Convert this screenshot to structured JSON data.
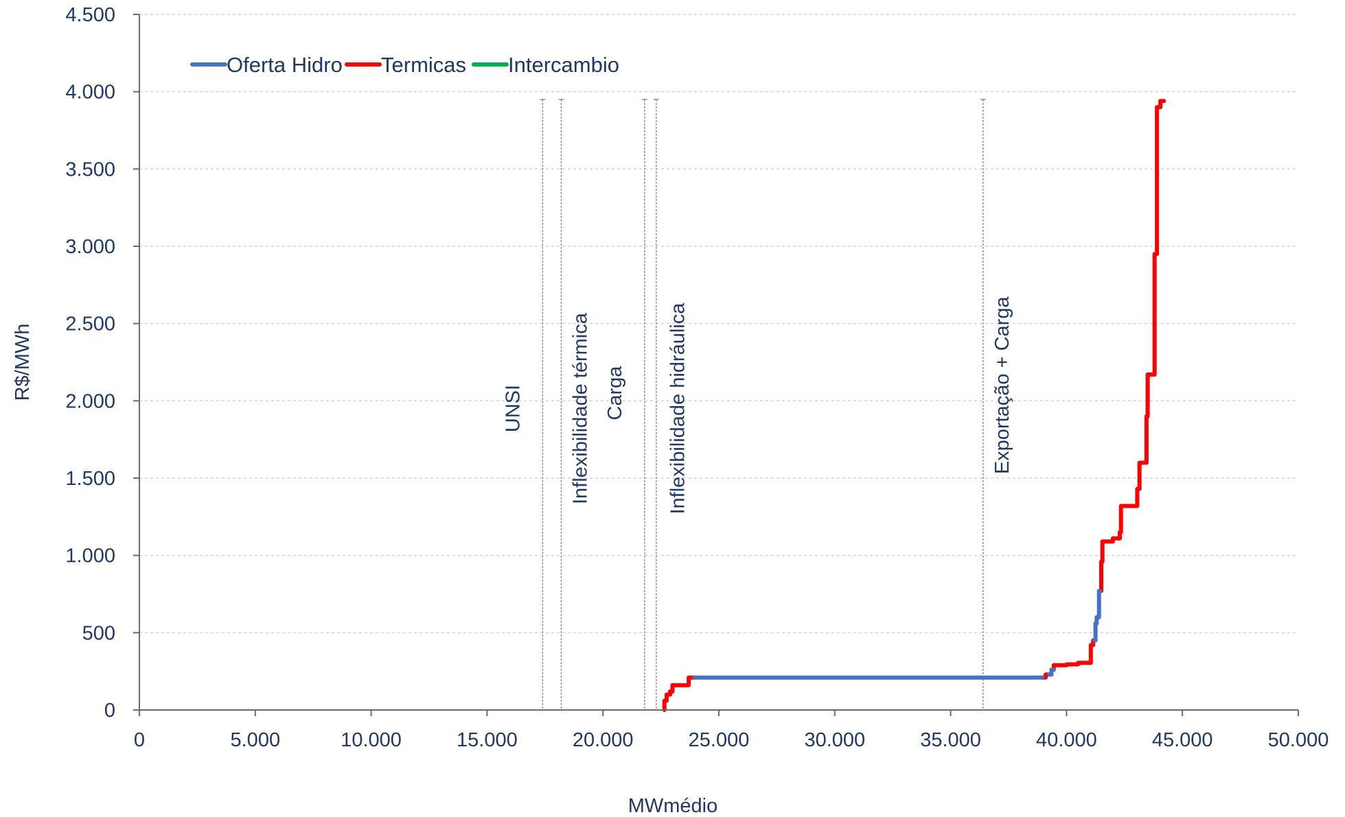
{
  "chart_data": {
    "type": "line",
    "xlabel": "MWmédio",
    "ylabel": "R$/MWh",
    "xlim": [
      0,
      50000
    ],
    "ylim": [
      0,
      4500
    ],
    "x_ticks": [
      0,
      5000,
      10000,
      15000,
      20000,
      25000,
      30000,
      35000,
      40000,
      45000,
      50000
    ],
    "x_tick_labels": [
      "0",
      "5.000",
      "10.000",
      "15.000",
      "20.000",
      "25.000",
      "30.000",
      "35.000",
      "40.000",
      "45.000",
      "50.000"
    ],
    "y_ticks": [
      0,
      500,
      1000,
      1500,
      2000,
      2500,
      3000,
      3500,
      4000,
      4500
    ],
    "y_tick_labels": [
      "0",
      "500",
      "1.000",
      "1.500",
      "2.000",
      "2.500",
      "3.000",
      "3.500",
      "4.000",
      "4.500"
    ],
    "grid": "horizontal dashed",
    "legend_position": "top-left",
    "legend": [
      {
        "label": "Oferta Hidro",
        "color": "#4472c4"
      },
      {
        "label": "Termicas",
        "color": "#ff0000"
      },
      {
        "label": "Intercambio",
        "color": "#00b050"
      }
    ],
    "series": [
      {
        "name": "Termicas",
        "color": "#ff0000",
        "segments": [
          [
            [
              22650,
              0
            ],
            [
              22650,
              60
            ],
            [
              22750,
              60
            ],
            [
              22750,
              100
            ],
            [
              22900,
              100
            ],
            [
              22900,
              120
            ],
            [
              23000,
              120
            ],
            [
              23000,
              160
            ],
            [
              23700,
              160
            ],
            [
              23700,
              210
            ],
            [
              23950,
              210
            ]
          ],
          [
            [
              38950,
              210
            ],
            [
              39100,
              210
            ],
            [
              39100,
              230
            ],
            [
              39350,
              230
            ]
          ],
          [
            [
              39350,
              260
            ],
            [
              39450,
              260
            ],
            [
              39450,
              290
            ],
            [
              40000,
              290
            ],
            [
              40000,
              295
            ],
            [
              40500,
              295
            ],
            [
              40500,
              305
            ],
            [
              41050,
              305
            ],
            [
              41050,
              420
            ],
            [
              41150,
              420
            ],
            [
              41150,
              450
            ],
            [
              41200,
              450
            ]
          ],
          [
            [
              41250,
              560
            ],
            [
              41300,
              560
            ]
          ],
          [
            [
              41450,
              770
            ],
            [
              41500,
              770
            ],
            [
              41500,
              960
            ],
            [
              41550,
              960
            ],
            [
              41550,
              1090
            ],
            [
              42000,
              1090
            ],
            [
              42000,
              1110
            ],
            [
              42300,
              1110
            ],
            [
              42300,
              1150
            ],
            [
              42350,
              1150
            ],
            [
              42350,
              1320
            ],
            [
              43050,
              1320
            ],
            [
              43050,
              1430
            ],
            [
              43150,
              1430
            ],
            [
              43150,
              1600
            ],
            [
              43450,
              1600
            ],
            [
              43450,
              1900
            ],
            [
              43500,
              1900
            ],
            [
              43500,
              2170
            ],
            [
              43800,
              2170
            ],
            [
              43800,
              2950
            ],
            [
              43900,
              2950
            ],
            [
              43900,
              3900
            ],
            [
              44050,
              3900
            ],
            [
              44050,
              3940
            ],
            [
              44200,
              3940
            ]
          ]
        ]
      },
      {
        "name": "Oferta Hidro",
        "color": "#4472c4",
        "segments": [
          [
            [
              23950,
              210
            ],
            [
              38950,
              210
            ]
          ],
          [
            [
              39250,
              230
            ],
            [
              39350,
              230
            ],
            [
              39350,
              260
            ],
            [
              39450,
              260
            ]
          ],
          [
            [
              41200,
              450
            ],
            [
              41250,
              450
            ],
            [
              41250,
              560
            ],
            [
              41300,
              560
            ],
            [
              41300,
              600
            ],
            [
              41400,
              600
            ],
            [
              41400,
              770
            ],
            [
              41450,
              770
            ]
          ]
        ]
      },
      {
        "name": "Intercambio",
        "color": "#00b050",
        "segments": []
      }
    ],
    "reference_lines": [
      {
        "x": 17400,
        "top": 3950,
        "label": ""
      },
      {
        "x": 18200,
        "top": 3950,
        "label": ""
      },
      {
        "x": 21800,
        "top": 3950,
        "label": ""
      },
      {
        "x": 22300,
        "top": 3950,
        "label": ""
      },
      {
        "x": 36400,
        "top": 3950,
        "label": ""
      }
    ],
    "annotations": [
      {
        "text": "UNSI",
        "x": 16400,
        "y": 1950
      },
      {
        "text": "Inflexibilidade térmica",
        "x": 19300,
        "y": 1950
      },
      {
        "text": "Carga",
        "x": 20800,
        "y": 2050
      },
      {
        "text": "Inflexibilidade hidráulica",
        "x": 23500,
        "y": 1950
      },
      {
        "text": "Exportação + Carga",
        "x": 37500,
        "y": 2100
      }
    ]
  }
}
